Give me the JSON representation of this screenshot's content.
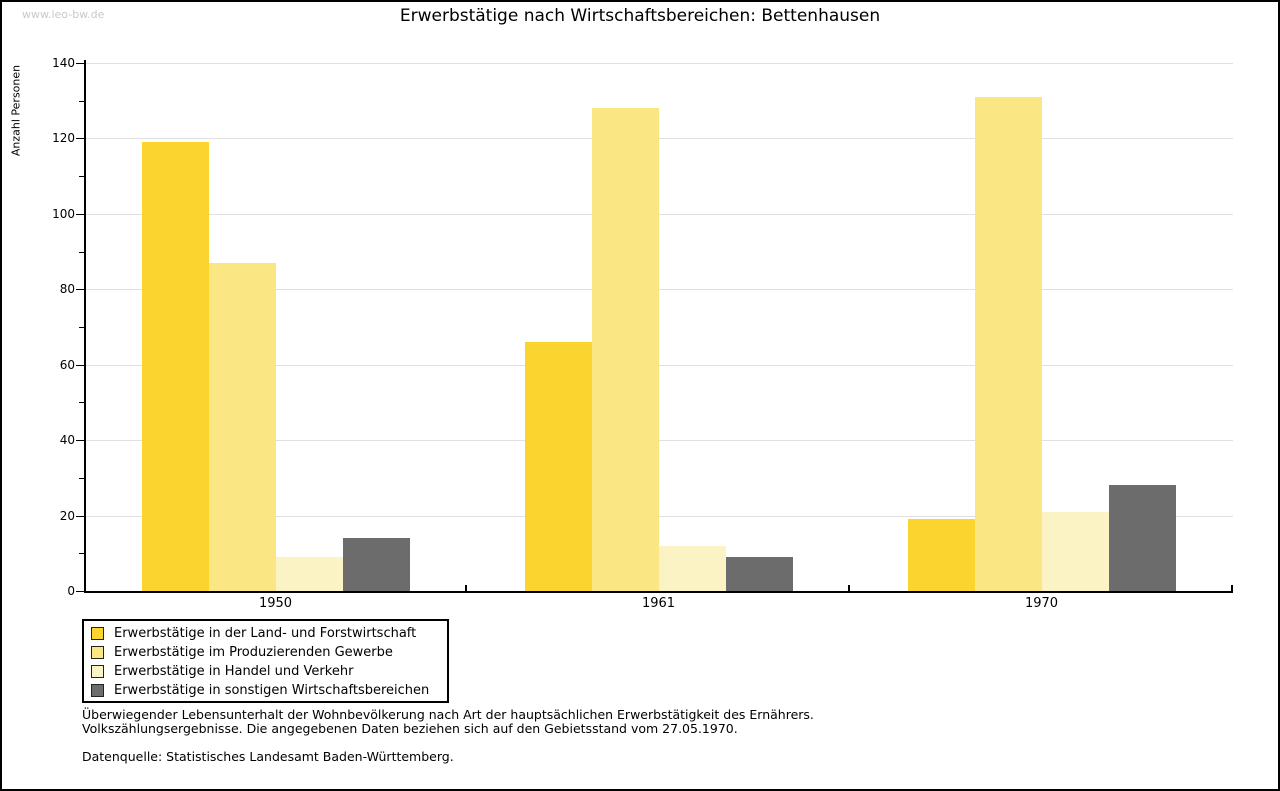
{
  "watermark": "www.leo-bw.de",
  "chart_data": {
    "type": "bar",
    "title": "Erwerbstätige nach Wirtschaftsbereichen: Bettenhausen",
    "ylabel": "Anzahl Personen",
    "xlabel": "",
    "categories": [
      "1950",
      "1961",
      "1970"
    ],
    "series": [
      {
        "name": "Erwerbstätige in der Land- und Forstwirtschaft",
        "color": "#FCD42F",
        "values": [
          119,
          66,
          19
        ]
      },
      {
        "name": "Erwerbstätige im Produzierenden Gewerbe",
        "color": "#FAE682",
        "values": [
          87,
          128,
          131
        ]
      },
      {
        "name": "Erwerbstätige in Handel und Verkehr",
        "color": "#FBF3C4",
        "values": [
          9,
          12,
          21
        ]
      },
      {
        "name": "Erwerbstätige in sonstigen Wirtschaftsbereichen",
        "color": "#6C6C6C",
        "values": [
          14,
          9,
          28
        ]
      }
    ],
    "ylim": [
      0,
      140
    ],
    "y_ticks": [
      0,
      20,
      40,
      60,
      80,
      100,
      120,
      140
    ],
    "minor_tick_interval": 10,
    "grid": true,
    "legend_position": "bottom-left"
  },
  "footnotes": {
    "line1": "Überwiegender Lebensunterhalt der Wohnbevölkerung nach Art der hauptsächlichen Erwerbstätigkeit des Ernährers.",
    "line2": "Volkszählungsergebnisse. Die angegebenen Daten beziehen sich auf den Gebietsstand vom 27.05.1970.",
    "source": "Datenquelle: Statistisches Landesamt Baden-Württemberg."
  },
  "colors": {
    "grid": "#E0E0E0",
    "axis": "#000000",
    "watermark": "#C9C9C9"
  }
}
